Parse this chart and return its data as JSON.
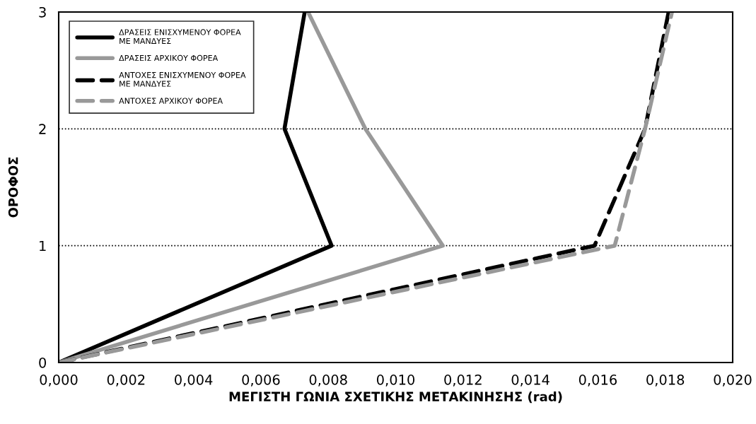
{
  "chart_data": {
    "type": "line",
    "xlabel": "ΜΕΓΙΣΤΗ ΓΩΝΙΑ ΣΧΕΤΙΚΗΣ ΜΕΤΑΚΙΝΗΣΗΣ (rad)",
    "ylabel": "ΟΡΟΦΟΣ",
    "series": [
      {
        "name": "ΔΡΑΣΕΙΣ ΕΝΙΣΧΥΜΕΝΟΥ ΦΟΡΕΑ ΜΕ ΜΑΝΔΥΕΣ",
        "color": "#000000",
        "line_style": "solid",
        "x": [
          0,
          0.0081,
          0.0067,
          0.0073
        ],
        "values": [
          0,
          1,
          2,
          3
        ]
      },
      {
        "name": "ΔΡΑΣΕΙΣ ΑΡΧΙΚΟΥ ΦΟΡΕΑ",
        "color": "#999999",
        "line_style": "solid",
        "x": [
          0,
          0.0114,
          0.0091,
          0.0074
        ],
        "values": [
          0,
          1,
          2,
          3
        ]
      },
      {
        "name": "ΑΝΤΟΧΕΣ ΕΝΙΣΧΥΜΕΝΟΥ ΦΟΡΕΑ ΜΕ ΜΑΝΔΥΕΣ",
        "color": "#000000",
        "line_style": "dashed",
        "x": [
          0,
          0.0159,
          0.0174,
          0.0181
        ],
        "values": [
          0,
          1,
          2,
          3
        ]
      },
      {
        "name": "ΑΝΤΟΧΕΣ ΑΡΧΙΚΟΥ ΦΟΡΕΑ",
        "color": "#999999",
        "line_style": "dashed",
        "x": [
          0,
          0.0165,
          0.0174,
          0.0182
        ],
        "values": [
          0,
          1,
          2,
          3
        ]
      }
    ],
    "xlim": [
      0,
      0.02
    ],
    "xticks": [
      {
        "value": 0,
        "label": "0,000"
      },
      {
        "value": 0.002,
        "label": "0,002"
      },
      {
        "value": 0.004,
        "label": "0,004"
      },
      {
        "value": 0.006,
        "label": "0,006"
      },
      {
        "value": 0.008,
        "label": "0,008"
      },
      {
        "value": 0.01,
        "label": "0,010"
      },
      {
        "value": 0.012,
        "label": "0,012"
      },
      {
        "value": 0.014,
        "label": "0,014"
      },
      {
        "value": 0.016,
        "label": "0,016"
      },
      {
        "value": 0.018,
        "label": "0,018"
      },
      {
        "value": 0.02,
        "label": "0,020"
      }
    ],
    "ylim": [
      0,
      3
    ],
    "yticks": [
      0,
      1,
      2,
      3
    ],
    "grid": "y",
    "legend": "top left",
    "marker": "none"
  }
}
